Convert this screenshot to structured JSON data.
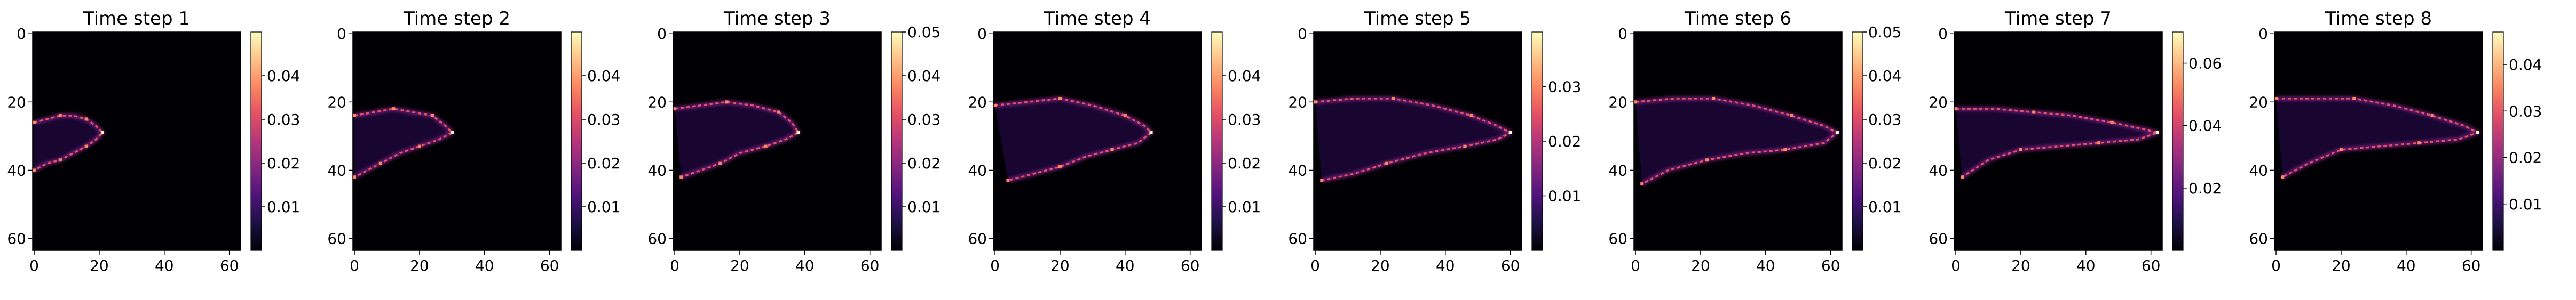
{
  "figure": {
    "colormap": "magma",
    "background": "#ffffff"
  },
  "panels": [
    {
      "title": "Time step 1",
      "xticks": [
        "0",
        "20",
        "40",
        "60"
      ],
      "yticks": [
        "0",
        "20",
        "40",
        "60"
      ],
      "colorbar": {
        "min": 0.0,
        "max": 0.05,
        "ticks": [
          "0.01",
          "0.02",
          "0.03",
          "0.04"
        ],
        "tick_values": [
          0.01,
          0.02,
          0.03,
          0.04
        ]
      }
    },
    {
      "title": "Time step 2",
      "xticks": [
        "0",
        "20",
        "40",
        "60"
      ],
      "yticks": [
        "0",
        "20",
        "40",
        "60"
      ],
      "colorbar": {
        "min": 0.0,
        "max": 0.05,
        "ticks": [
          "0.01",
          "0.02",
          "0.03",
          "0.04"
        ],
        "tick_values": [
          0.01,
          0.02,
          0.03,
          0.04
        ]
      }
    },
    {
      "title": "Time step 3",
      "xticks": [
        "0",
        "20",
        "40",
        "60"
      ],
      "yticks": [
        "0",
        "20",
        "40",
        "60"
      ],
      "colorbar": {
        "min": 0.0,
        "max": 0.05,
        "ticks": [
          "0.01",
          "0.02",
          "0.03",
          "0.04",
          "0.05"
        ],
        "tick_values": [
          0.01,
          0.02,
          0.03,
          0.04,
          0.05
        ]
      }
    },
    {
      "title": "Time step 4",
      "xticks": [
        "0",
        "20",
        "40",
        "60"
      ],
      "yticks": [
        "0",
        "20",
        "40",
        "60"
      ],
      "colorbar": {
        "min": 0.0,
        "max": 0.05,
        "ticks": [
          "0.01",
          "0.02",
          "0.03",
          "0.04"
        ],
        "tick_values": [
          0.01,
          0.02,
          0.03,
          0.04
        ]
      }
    },
    {
      "title": "Time step 5",
      "xticks": [
        "0",
        "20",
        "40",
        "60"
      ],
      "yticks": [
        "0",
        "20",
        "40",
        "60"
      ],
      "colorbar": {
        "min": 0.0,
        "max": 0.04,
        "ticks": [
          "0.01",
          "0.02",
          "0.03"
        ],
        "tick_values": [
          0.01,
          0.02,
          0.03
        ]
      }
    },
    {
      "title": "Time step 6",
      "xticks": [
        "0",
        "20",
        "40",
        "60"
      ],
      "yticks": [
        "0",
        "20",
        "40",
        "60"
      ],
      "colorbar": {
        "min": 0.0,
        "max": 0.05,
        "ticks": [
          "0.01",
          "0.02",
          "0.03",
          "0.04",
          "0.05"
        ],
        "tick_values": [
          0.01,
          0.02,
          0.03,
          0.04,
          0.05
        ]
      }
    },
    {
      "title": "Time step 7",
      "xticks": [
        "0",
        "20",
        "40",
        "60"
      ],
      "yticks": [
        "0",
        "20",
        "40",
        "60"
      ],
      "colorbar": {
        "min": 0.0,
        "max": 0.07,
        "ticks": [
          "0.02",
          "0.04",
          "0.06"
        ],
        "tick_values": [
          0.02,
          0.04,
          0.06
        ]
      }
    },
    {
      "title": "Time step 8",
      "xticks": [
        "0",
        "20",
        "40",
        "60"
      ],
      "yticks": [
        "0",
        "20",
        "40",
        "60"
      ],
      "colorbar": {
        "min": 0.0,
        "max": 0.047,
        "ticks": [
          "0.01",
          "0.02",
          "0.03",
          "0.04"
        ],
        "tick_values": [
          0.01,
          0.02,
          0.03,
          0.04
        ]
      }
    }
  ],
  "chart_data": [
    {
      "type": "heatmap",
      "title": "Time step 1",
      "grid_size": 64,
      "xlim": [
        0,
        63
      ],
      "ylim": [
        63,
        0
      ],
      "value_range": [
        0,
        0.05
      ],
      "front": [
        [
          0,
          26
        ],
        [
          4,
          25
        ],
        [
          8,
          24
        ],
        [
          12,
          24
        ],
        [
          16,
          25
        ],
        [
          19,
          27
        ],
        [
          21,
          29
        ],
        [
          19,
          31
        ],
        [
          16,
          33
        ],
        [
          12,
          35
        ],
        [
          8,
          37
        ],
        [
          4,
          38
        ],
        [
          0,
          40
        ]
      ]
    },
    {
      "title": "Time step 2",
      "grid_size": 64,
      "xlim": [
        0,
        63
      ],
      "ylim": [
        63,
        0
      ],
      "value_range": [
        0,
        0.05
      ],
      "type": "heatmap",
      "front": [
        [
          0,
          24
        ],
        [
          6,
          23
        ],
        [
          12,
          22
        ],
        [
          18,
          23
        ],
        [
          24,
          24
        ],
        [
          28,
          27
        ],
        [
          30,
          29
        ],
        [
          26,
          31
        ],
        [
          20,
          33
        ],
        [
          14,
          35
        ],
        [
          8,
          38
        ],
        [
          4,
          40
        ],
        [
          0,
          42
        ]
      ]
    },
    {
      "title": "Time step 3",
      "grid_size": 64,
      "xlim": [
        0,
        63
      ],
      "ylim": [
        63,
        0
      ],
      "value_range": [
        0,
        0.05
      ],
      "type": "heatmap",
      "front": [
        [
          0,
          22
        ],
        [
          8,
          21
        ],
        [
          16,
          20
        ],
        [
          24,
          21
        ],
        [
          32,
          23
        ],
        [
          36,
          26
        ],
        [
          38,
          29
        ],
        [
          34,
          31
        ],
        [
          28,
          33
        ],
        [
          20,
          35
        ],
        [
          14,
          38
        ],
        [
          8,
          40
        ],
        [
          2,
          42
        ]
      ]
    },
    {
      "title": "Time step 4",
      "grid_size": 64,
      "xlim": [
        0,
        63
      ],
      "ylim": [
        63,
        0
      ],
      "value_range": [
        0,
        0.05
      ],
      "type": "heatmap",
      "front": [
        [
          0,
          21
        ],
        [
          10,
          20
        ],
        [
          20,
          19
        ],
        [
          30,
          21
        ],
        [
          40,
          24
        ],
        [
          46,
          27
        ],
        [
          48,
          29
        ],
        [
          44,
          32
        ],
        [
          36,
          34
        ],
        [
          28,
          36
        ],
        [
          20,
          39
        ],
        [
          12,
          41
        ],
        [
          4,
          43
        ]
      ]
    },
    {
      "title": "Time step 5",
      "grid_size": 64,
      "xlim": [
        0,
        63
      ],
      "ylim": [
        63,
        0
      ],
      "value_range": [
        0,
        0.04
      ],
      "type": "heatmap",
      "front": [
        [
          0,
          20
        ],
        [
          12,
          19
        ],
        [
          24,
          19
        ],
        [
          36,
          21
        ],
        [
          48,
          24
        ],
        [
          56,
          27
        ],
        [
          60,
          29
        ],
        [
          56,
          31
        ],
        [
          46,
          33
        ],
        [
          34,
          35
        ],
        [
          22,
          38
        ],
        [
          12,
          41
        ],
        [
          2,
          43
        ]
      ]
    },
    {
      "title": "Time step 6",
      "grid_size": 64,
      "xlim": [
        0,
        63
      ],
      "ylim": [
        63,
        0
      ],
      "value_range": [
        0,
        0.05
      ],
      "type": "heatmap",
      "front": [
        [
          0,
          20
        ],
        [
          12,
          19
        ],
        [
          24,
          19
        ],
        [
          36,
          21
        ],
        [
          48,
          24
        ],
        [
          58,
          27
        ],
        [
          62,
          29
        ],
        [
          58,
          32
        ],
        [
          46,
          34
        ],
        [
          34,
          35
        ],
        [
          22,
          37
        ],
        [
          10,
          40
        ],
        [
          2,
          44
        ]
      ]
    },
    {
      "title": "Time step 7",
      "grid_size": 64,
      "xlim": [
        0,
        63
      ],
      "ylim": [
        63,
        0
      ],
      "value_range": [
        0,
        0.07
      ],
      "type": "heatmap",
      "front": [
        [
          0,
          22
        ],
        [
          12,
          22
        ],
        [
          24,
          23
        ],
        [
          36,
          24
        ],
        [
          48,
          26
        ],
        [
          58,
          28
        ],
        [
          62,
          29
        ],
        [
          56,
          31
        ],
        [
          44,
          32
        ],
        [
          32,
          33
        ],
        [
          20,
          34
        ],
        [
          10,
          37
        ],
        [
          2,
          42
        ]
      ]
    },
    {
      "title": "Time step 8",
      "grid_size": 64,
      "xlim": [
        0,
        63
      ],
      "ylim": [
        63,
        0
      ],
      "value_range": [
        0,
        0.047
      ],
      "type": "heatmap",
      "front": [
        [
          0,
          19
        ],
        [
          12,
          19
        ],
        [
          24,
          19
        ],
        [
          36,
          21
        ],
        [
          48,
          24
        ],
        [
          58,
          27
        ],
        [
          62,
          29
        ],
        [
          56,
          31
        ],
        [
          44,
          32
        ],
        [
          32,
          33
        ],
        [
          20,
          34
        ],
        [
          10,
          38
        ],
        [
          2,
          42
        ]
      ]
    }
  ]
}
